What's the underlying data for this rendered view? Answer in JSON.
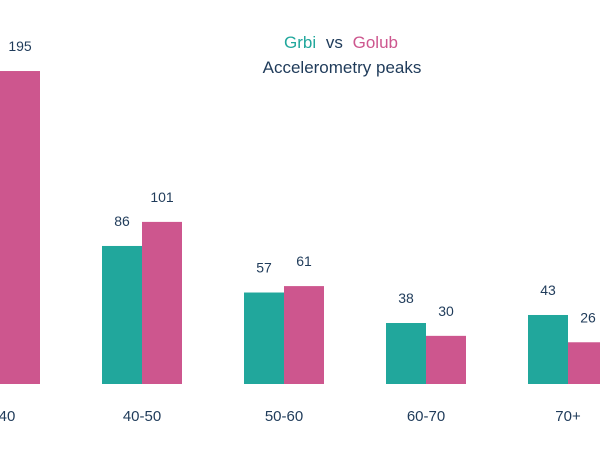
{
  "colors": {
    "series_a": "#21a79c",
    "series_b": "#cd568e",
    "title_dark": "#1f3b5a",
    "label": "#1f3b5a"
  },
  "chart_data": {
    "type": "bar",
    "title_parts": {
      "series_a": "Grbi",
      "connector": "vs",
      "series_b": "Golub"
    },
    "subtitle": "Accelerometry peaks",
    "categories": [
      "40",
      "40-50",
      "50-60",
      "60-70",
      "70+"
    ],
    "series": [
      {
        "name": "Grbi",
        "values": [
          null,
          86,
          57,
          38,
          43
        ]
      },
      {
        "name": "Golub",
        "values": [
          195,
          101,
          61,
          30,
          26
        ]
      }
    ],
    "value_labels": [
      {
        "series": 1,
        "category": 0,
        "text": "195"
      },
      {
        "series": 0,
        "category": 1,
        "text": "86"
      },
      {
        "series": 1,
        "category": 1,
        "text": "101"
      },
      {
        "series": 0,
        "category": 2,
        "text": "57"
      },
      {
        "series": 1,
        "category": 2,
        "text": "61"
      },
      {
        "series": 0,
        "category": 3,
        "text": "38"
      },
      {
        "series": 1,
        "category": 3,
        "text": "30"
      },
      {
        "series": 0,
        "category": 4,
        "text": "43"
      },
      {
        "series": 1,
        "category": 4,
        "text": "26"
      }
    ],
    "ylim": [
      0,
      195
    ],
    "grid": false,
    "legend": "none"
  }
}
